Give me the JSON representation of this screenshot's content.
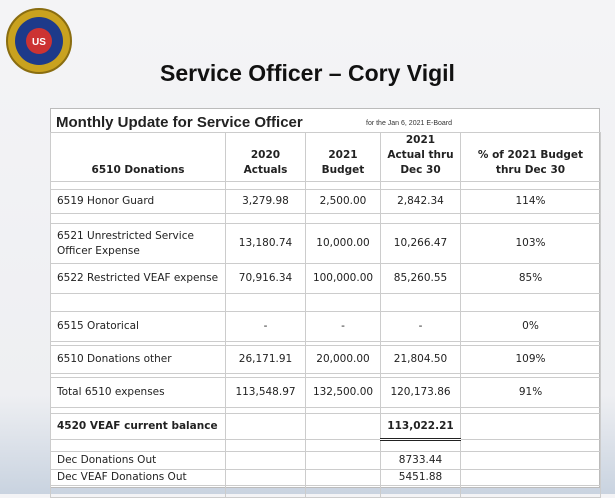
{
  "header": {
    "title": "Service Officer – Cory Vigil"
  },
  "table": {
    "caption": "Monthly Update for Service Officer",
    "note": "for the Jan 6, 2021 E-Board",
    "columns": [
      "6510 Donations",
      "2020 Actuals",
      "2021 Budget",
      "2021 Actual thru Dec 30",
      "% of 2021 Budget  thru Dec 30"
    ],
    "rows": [
      [
        "6519 Honor Guard",
        "3,279.98",
        "2,500.00",
        "2,842.34",
        "114%"
      ],
      [
        "6521  Unrestricted Service Officer Expense",
        "13,180.74",
        "10,000.00",
        "10,266.47",
        "103%"
      ],
      [
        "6522 Restricted VEAF expense",
        "70,916.34",
        "100,000.00",
        "85,260.55",
        "85%"
      ],
      [
        "6515 Oratorical",
        "-",
        "-",
        "-",
        "0%"
      ],
      [
        "6510 Donations other",
        "26,171.91",
        "20,000.00",
        "21,804.50",
        "109%"
      ],
      [
        "Total 6510 expenses",
        "113,548.97",
        "132,500.00",
        "120,173.86",
        "91%"
      ],
      [
        "4520 VEAF current balance",
        "",
        "",
        "113,022.21",
        ""
      ],
      [
        "Dec Donations Out",
        "",
        "",
        "8733.44",
        ""
      ],
      [
        "Dec VEAF Donations Out",
        "",
        "",
        "5451.88",
        ""
      ]
    ]
  }
}
